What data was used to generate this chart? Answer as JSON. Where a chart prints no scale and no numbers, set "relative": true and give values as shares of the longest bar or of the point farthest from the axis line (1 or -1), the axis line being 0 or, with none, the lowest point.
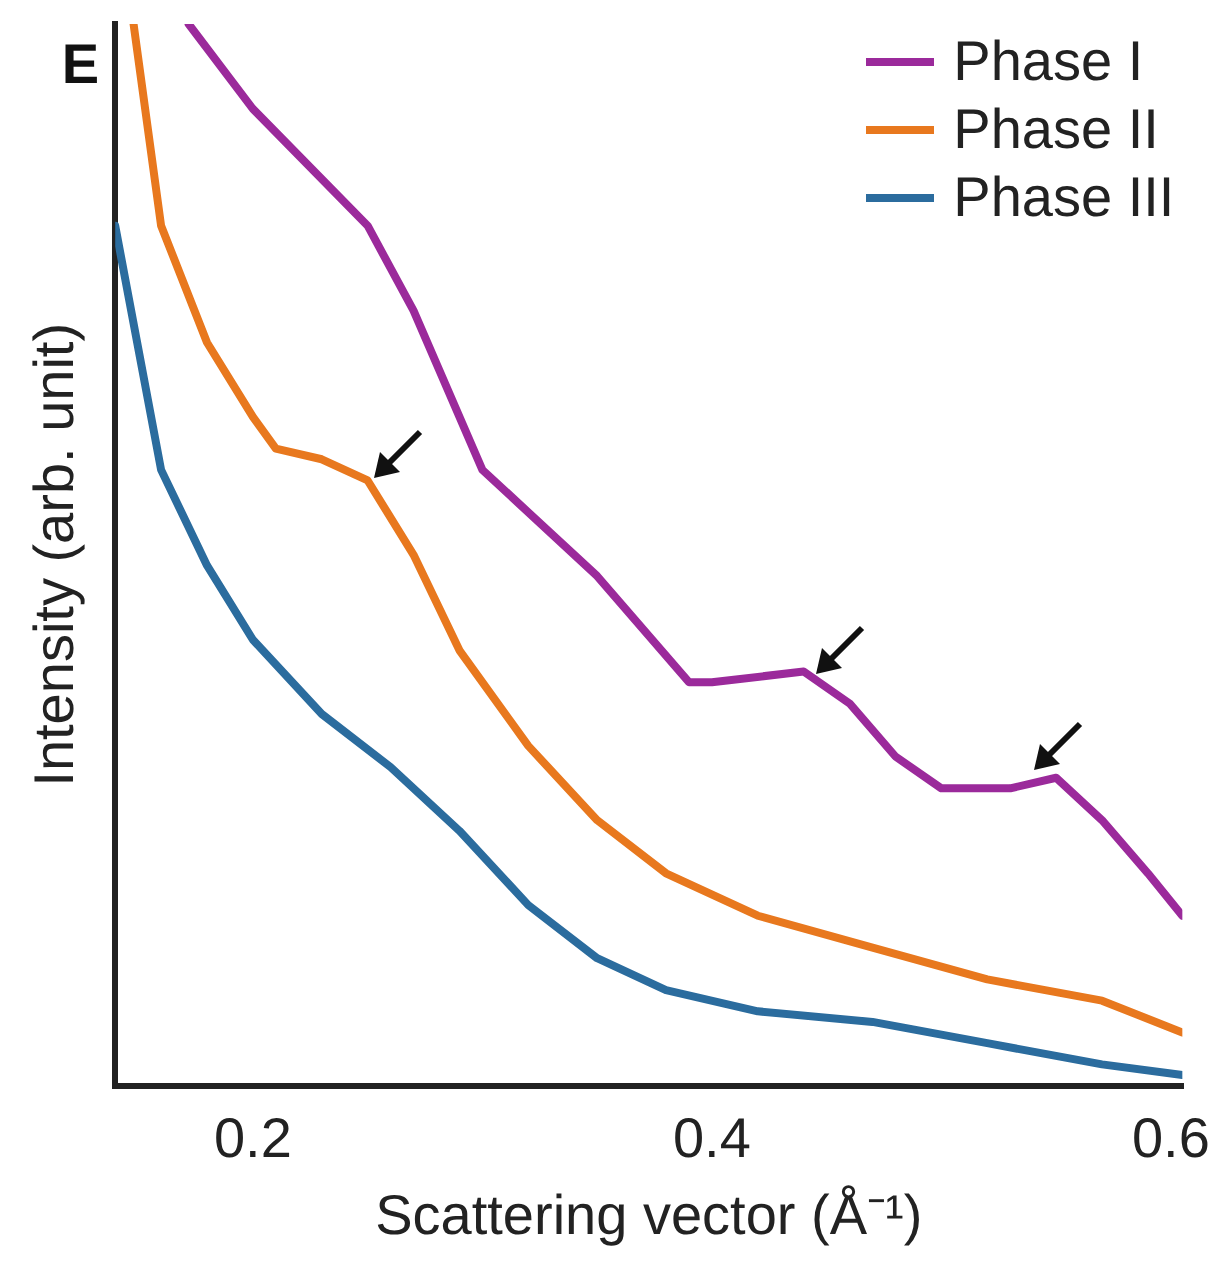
{
  "chart_data": {
    "type": "line",
    "relative": true,
    "annotations": [
      "E"
    ],
    "xlabel": "Scattering vector (Å⁻¹)",
    "ylabel": "Intensity (arb. unit)",
    "xlim": [
      0.14,
      0.605
    ],
    "xticks": [
      0.2,
      0.4,
      0.6
    ],
    "grid": false,
    "legend": "top right",
    "marker": "none",
    "line_style": "solid",
    "series": [
      {
        "name": "Phase I",
        "color": "#9b2a9b",
        "x": [
          0.172,
          0.2,
          0.25,
          0.27,
          0.3,
          0.35,
          0.39,
          0.4,
          0.44,
          0.46,
          0.48,
          0.5,
          0.53,
          0.55,
          0.57,
          0.59,
          0.605
        ],
        "values": [
          1,
          0.92,
          0.81,
          0.73,
          0.58,
          0.48,
          0.38,
          0.38,
          0.39,
          0.36,
          0.31,
          0.28,
          0.28,
          0.29,
          0.25,
          0.2,
          0.16
        ]
      },
      {
        "name": "Phase II",
        "color": "#e8781e",
        "x": [
          0.148,
          0.16,
          0.18,
          0.2,
          0.21,
          0.23,
          0.25,
          0.27,
          0.29,
          0.32,
          0.35,
          0.38,
          0.42,
          0.47,
          0.52,
          0.57,
          0.605
        ],
        "values": [
          1,
          0.81,
          0.7,
          0.63,
          0.6,
          0.59,
          0.57,
          0.5,
          0.41,
          0.32,
          0.25,
          0.2,
          0.16,
          0.13,
          0.1,
          0.08,
          0.05
        ]
      },
      {
        "name": "Phase III",
        "color": "#2b6c9e",
        "x": [
          0.14,
          0.16,
          0.18,
          0.2,
          0.23,
          0.26,
          0.29,
          0.32,
          0.35,
          0.38,
          0.42,
          0.47,
          0.52,
          0.57,
          0.605
        ],
        "values": [
          0.81,
          0.58,
          0.49,
          0.42,
          0.35,
          0.3,
          0.24,
          0.17,
          0.12,
          0.09,
          0.07,
          0.06,
          0.04,
          0.02,
          0.01
        ]
      }
    ]
  }
}
